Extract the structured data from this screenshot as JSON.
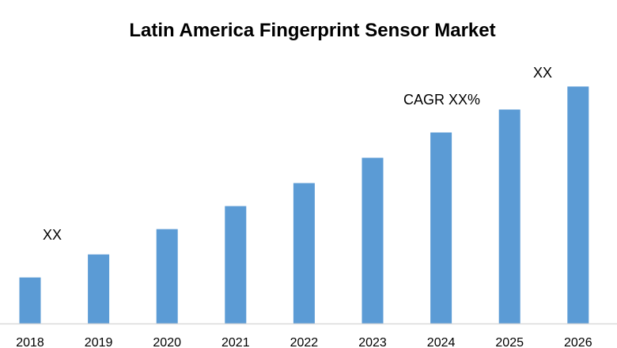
{
  "chart_data": {
    "type": "bar",
    "title": "Latin America Fingerprint Sensor Market",
    "xlabel": "",
    "ylabel": "",
    "categories": [
      "2018",
      "2019",
      "2020",
      "2021",
      "2022",
      "2023",
      "2024",
      "2025",
      "2026"
    ],
    "values": [
      20,
      30,
      41,
      51,
      61,
      72,
      83,
      93,
      103
    ],
    "ylim": [
      0,
      110
    ],
    "grid": false,
    "bar_color": "#5b9bd5",
    "annotations": {
      "start_value": "XX",
      "cagr": "CAGR XX%",
      "end_value": "XX"
    }
  }
}
